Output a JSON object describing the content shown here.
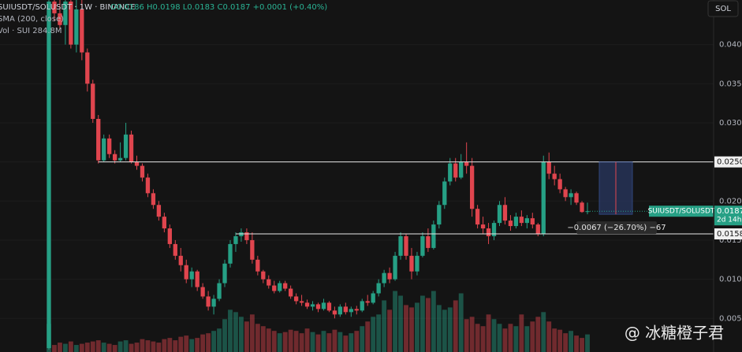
{
  "chart_data": {
    "type": "candlestick",
    "legend": {
      "symbol": "SUIUSDT/SOLUSDT · 1W · BINANCE",
      "ohlc_text": "O0.0186  H0.0198  L0.0183  C0.0187  +0.0001 (+0.40%)",
      "sma": "SMA (200, close)",
      "volume": "Vol · SUI  284.8M"
    },
    "axis_unit": "SOL",
    "ylim": [
      0.0007,
      0.0457
    ],
    "yticks": [
      {
        "value": 0.005,
        "label": "0.0050"
      },
      {
        "value": 0.01,
        "label": "0.0100"
      },
      {
        "value": 0.015,
        "label": "0.0150"
      },
      {
        "value": 0.02,
        "label": "0.0200"
      },
      {
        "value": 0.025,
        "label": "0.0250"
      },
      {
        "value": 0.03,
        "label": "0.0300"
      },
      {
        "value": 0.035,
        "label": "0.0350"
      },
      {
        "value": 0.04,
        "label": "0.0400"
      }
    ],
    "up_color": "#26a085",
    "down_color": "#e0454e",
    "ohlc": [
      [
        0.0012,
        0.046,
        0.001,
        0.0455
      ],
      [
        0.0455,
        0.046,
        0.043,
        0.044
      ],
      [
        0.044,
        0.046,
        0.042,
        0.0425
      ],
      [
        0.0425,
        0.046,
        0.04,
        0.0455
      ],
      [
        0.0455,
        0.046,
        0.0395,
        0.04
      ],
      [
        0.04,
        0.046,
        0.039,
        0.0445
      ],
      [
        0.0445,
        0.046,
        0.038,
        0.039
      ],
      [
        0.039,
        0.0395,
        0.034,
        0.035
      ],
      [
        0.035,
        0.0355,
        0.03,
        0.0305
      ],
      [
        0.0305,
        0.031,
        0.0248,
        0.0252
      ],
      [
        0.0252,
        0.0285,
        0.025,
        0.028
      ],
      [
        0.028,
        0.0285,
        0.0255,
        0.026
      ],
      [
        0.026,
        0.0265,
        0.0248,
        0.0252
      ],
      [
        0.0252,
        0.0275,
        0.025,
        0.0255
      ],
      [
        0.0255,
        0.03,
        0.0252,
        0.0285
      ],
      [
        0.0285,
        0.029,
        0.0248,
        0.025
      ],
      [
        0.025,
        0.0258,
        0.024,
        0.0245
      ],
      [
        0.0245,
        0.0248,
        0.0225,
        0.023
      ],
      [
        0.023,
        0.0235,
        0.0205,
        0.021
      ],
      [
        0.021,
        0.0215,
        0.019,
        0.0195
      ],
      [
        0.0195,
        0.02,
        0.0175,
        0.018
      ],
      [
        0.018,
        0.0185,
        0.016,
        0.0165
      ],
      [
        0.0165,
        0.017,
        0.014,
        0.0145
      ],
      [
        0.0145,
        0.015,
        0.0125,
        0.013
      ],
      [
        0.013,
        0.014,
        0.011,
        0.0118
      ],
      [
        0.0118,
        0.0125,
        0.0095,
        0.01
      ],
      [
        0.01,
        0.0115,
        0.009,
        0.011
      ],
      [
        0.011,
        0.0112,
        0.0085,
        0.009
      ],
      [
        0.009,
        0.0095,
        0.0075,
        0.0078
      ],
      [
        0.0078,
        0.0085,
        0.006,
        0.0065
      ],
      [
        0.0065,
        0.008,
        0.0055,
        0.0075
      ],
      [
        0.0075,
        0.01,
        0.0072,
        0.0095
      ],
      [
        0.0095,
        0.0125,
        0.009,
        0.012
      ],
      [
        0.012,
        0.015,
        0.0115,
        0.0145
      ],
      [
        0.0145,
        0.016,
        0.0135,
        0.0155
      ],
      [
        0.0155,
        0.0165,
        0.0148,
        0.016
      ],
      [
        0.016,
        0.0165,
        0.0145,
        0.015
      ],
      [
        0.015,
        0.016,
        0.012,
        0.0125
      ],
      [
        0.0125,
        0.013,
        0.0105,
        0.011
      ],
      [
        0.011,
        0.0112,
        0.0095,
        0.01
      ],
      [
        0.01,
        0.0105,
        0.0088,
        0.0092
      ],
      [
        0.0092,
        0.0098,
        0.0082,
        0.0085
      ],
      [
        0.0085,
        0.0098,
        0.0083,
        0.0095
      ],
      [
        0.0095,
        0.0098,
        0.0085,
        0.0088
      ],
      [
        0.0088,
        0.0092,
        0.0075,
        0.0078
      ],
      [
        0.0078,
        0.0082,
        0.0068,
        0.0072
      ],
      [
        0.0072,
        0.008,
        0.0066,
        0.007
      ],
      [
        0.007,
        0.0074,
        0.0062,
        0.0065
      ],
      [
        0.0065,
        0.0072,
        0.006,
        0.0068
      ],
      [
        0.0068,
        0.007,
        0.0058,
        0.0062
      ],
      [
        0.0062,
        0.0075,
        0.006,
        0.007
      ],
      [
        0.007,
        0.0072,
        0.0058,
        0.006
      ],
      [
        0.006,
        0.0065,
        0.005,
        0.0055
      ],
      [
        0.0055,
        0.0068,
        0.0052,
        0.0065
      ],
      [
        0.0065,
        0.007,
        0.0055,
        0.0058
      ],
      [
        0.0058,
        0.0065,
        0.0052,
        0.0062
      ],
      [
        0.0062,
        0.0066,
        0.0055,
        0.006
      ],
      [
        0.006,
        0.0075,
        0.0058,
        0.0072
      ],
      [
        0.0072,
        0.008,
        0.0066,
        0.007
      ],
      [
        0.007,
        0.0085,
        0.0068,
        0.0082
      ],
      [
        0.0082,
        0.01,
        0.0078,
        0.0095
      ],
      [
        0.0095,
        0.0112,
        0.009,
        0.0108
      ],
      [
        0.0108,
        0.0115,
        0.0095,
        0.01
      ],
      [
        0.01,
        0.0135,
        0.0098,
        0.013
      ],
      [
        0.013,
        0.016,
        0.0125,
        0.0155
      ],
      [
        0.0155,
        0.0158,
        0.0125,
        0.013
      ],
      [
        0.013,
        0.014,
        0.01,
        0.011
      ],
      [
        0.011,
        0.0135,
        0.0105,
        0.013
      ],
      [
        0.013,
        0.016,
        0.0128,
        0.0155
      ],
      [
        0.0155,
        0.0165,
        0.0135,
        0.014
      ],
      [
        0.014,
        0.0175,
        0.0138,
        0.017
      ],
      [
        0.017,
        0.02,
        0.0165,
        0.0195
      ],
      [
        0.0195,
        0.023,
        0.019,
        0.0225
      ],
      [
        0.0225,
        0.0255,
        0.022,
        0.0248
      ],
      [
        0.0248,
        0.0255,
        0.0225,
        0.023
      ],
      [
        0.023,
        0.026,
        0.0228,
        0.025
      ],
      [
        0.025,
        0.0275,
        0.0235,
        0.0245
      ],
      [
        0.0245,
        0.0255,
        0.018,
        0.019
      ],
      [
        0.019,
        0.0195,
        0.0165,
        0.017
      ],
      [
        0.017,
        0.018,
        0.0158,
        0.0165
      ],
      [
        0.0165,
        0.0172,
        0.0145,
        0.0155
      ],
      [
        0.0155,
        0.0175,
        0.015,
        0.0172
      ],
      [
        0.0172,
        0.02,
        0.0168,
        0.0195
      ],
      [
        0.0195,
        0.0205,
        0.017,
        0.0175
      ],
      [
        0.0175,
        0.0182,
        0.0162,
        0.0168
      ],
      [
        0.0168,
        0.0185,
        0.0165,
        0.018
      ],
      [
        0.018,
        0.0188,
        0.0168,
        0.0172
      ],
      [
        0.0172,
        0.0182,
        0.0165,
        0.0178
      ],
      [
        0.0178,
        0.0185,
        0.0165,
        0.017
      ],
      [
        0.017,
        0.0172,
        0.0155,
        0.0158
      ],
      [
        0.0158,
        0.0258,
        0.0155,
        0.025
      ],
      [
        0.025,
        0.0262,
        0.0228,
        0.0235
      ],
      [
        0.0235,
        0.0245,
        0.022,
        0.0228
      ],
      [
        0.0228,
        0.0235,
        0.021,
        0.0215
      ],
      [
        0.0215,
        0.0218,
        0.02,
        0.0205
      ],
      [
        0.0205,
        0.0215,
        0.0195,
        0.021
      ],
      [
        0.021,
        0.0212,
        0.0195,
        0.0198
      ],
      [
        0.0198,
        0.02,
        0.0185,
        0.0186
      ],
      [
        0.0186,
        0.0198,
        0.0183,
        0.0187
      ]
    ],
    "volume": [
      120,
      30,
      40,
      35,
      45,
      30,
      35,
      40,
      45,
      50,
      40,
      35,
      30,
      45,
      50,
      35,
      40,
      55,
      50,
      45,
      40,
      55,
      60,
      50,
      65,
      70,
      55,
      60,
      75,
      80,
      90,
      100,
      140,
      180,
      170,
      150,
      130,
      160,
      120,
      110,
      100,
      90,
      80,
      85,
      95,
      90,
      80,
      100,
      85,
      75,
      90,
      80,
      95,
      85,
      70,
      80,
      90,
      110,
      130,
      150,
      160,
      220,
      180,
      260,
      240,
      200,
      190,
      210,
      240,
      230,
      260,
      200,
      180,
      190,
      220,
      250,
      140,
      150,
      120,
      110,
      160,
      140,
      120,
      100,
      120,
      110,
      160,
      110,
      130,
      150,
      170,
      130,
      100,
      95,
      80,
      90,
      70,
      60,
      75
    ],
    "y2lim": [
      0,
      1500
    ],
    "levels": [
      {
        "value": 0.025,
        "label": "0.0250"
      },
      {
        "value": 0.0158,
        "label": "0.0158"
      }
    ],
    "price_label": {
      "name": "SUIUSDT/SOLUSDT",
      "value": {
        "value": 0.0187,
        "label": "0.0187"
      },
      "countdown": "2d 14h"
    },
    "measure": {
      "from": 0.025,
      "to": 0.0183,
      "label": "−0.0067 (−26.70%) −67"
    },
    "watermark": "@ 冰糖橙子君"
  }
}
